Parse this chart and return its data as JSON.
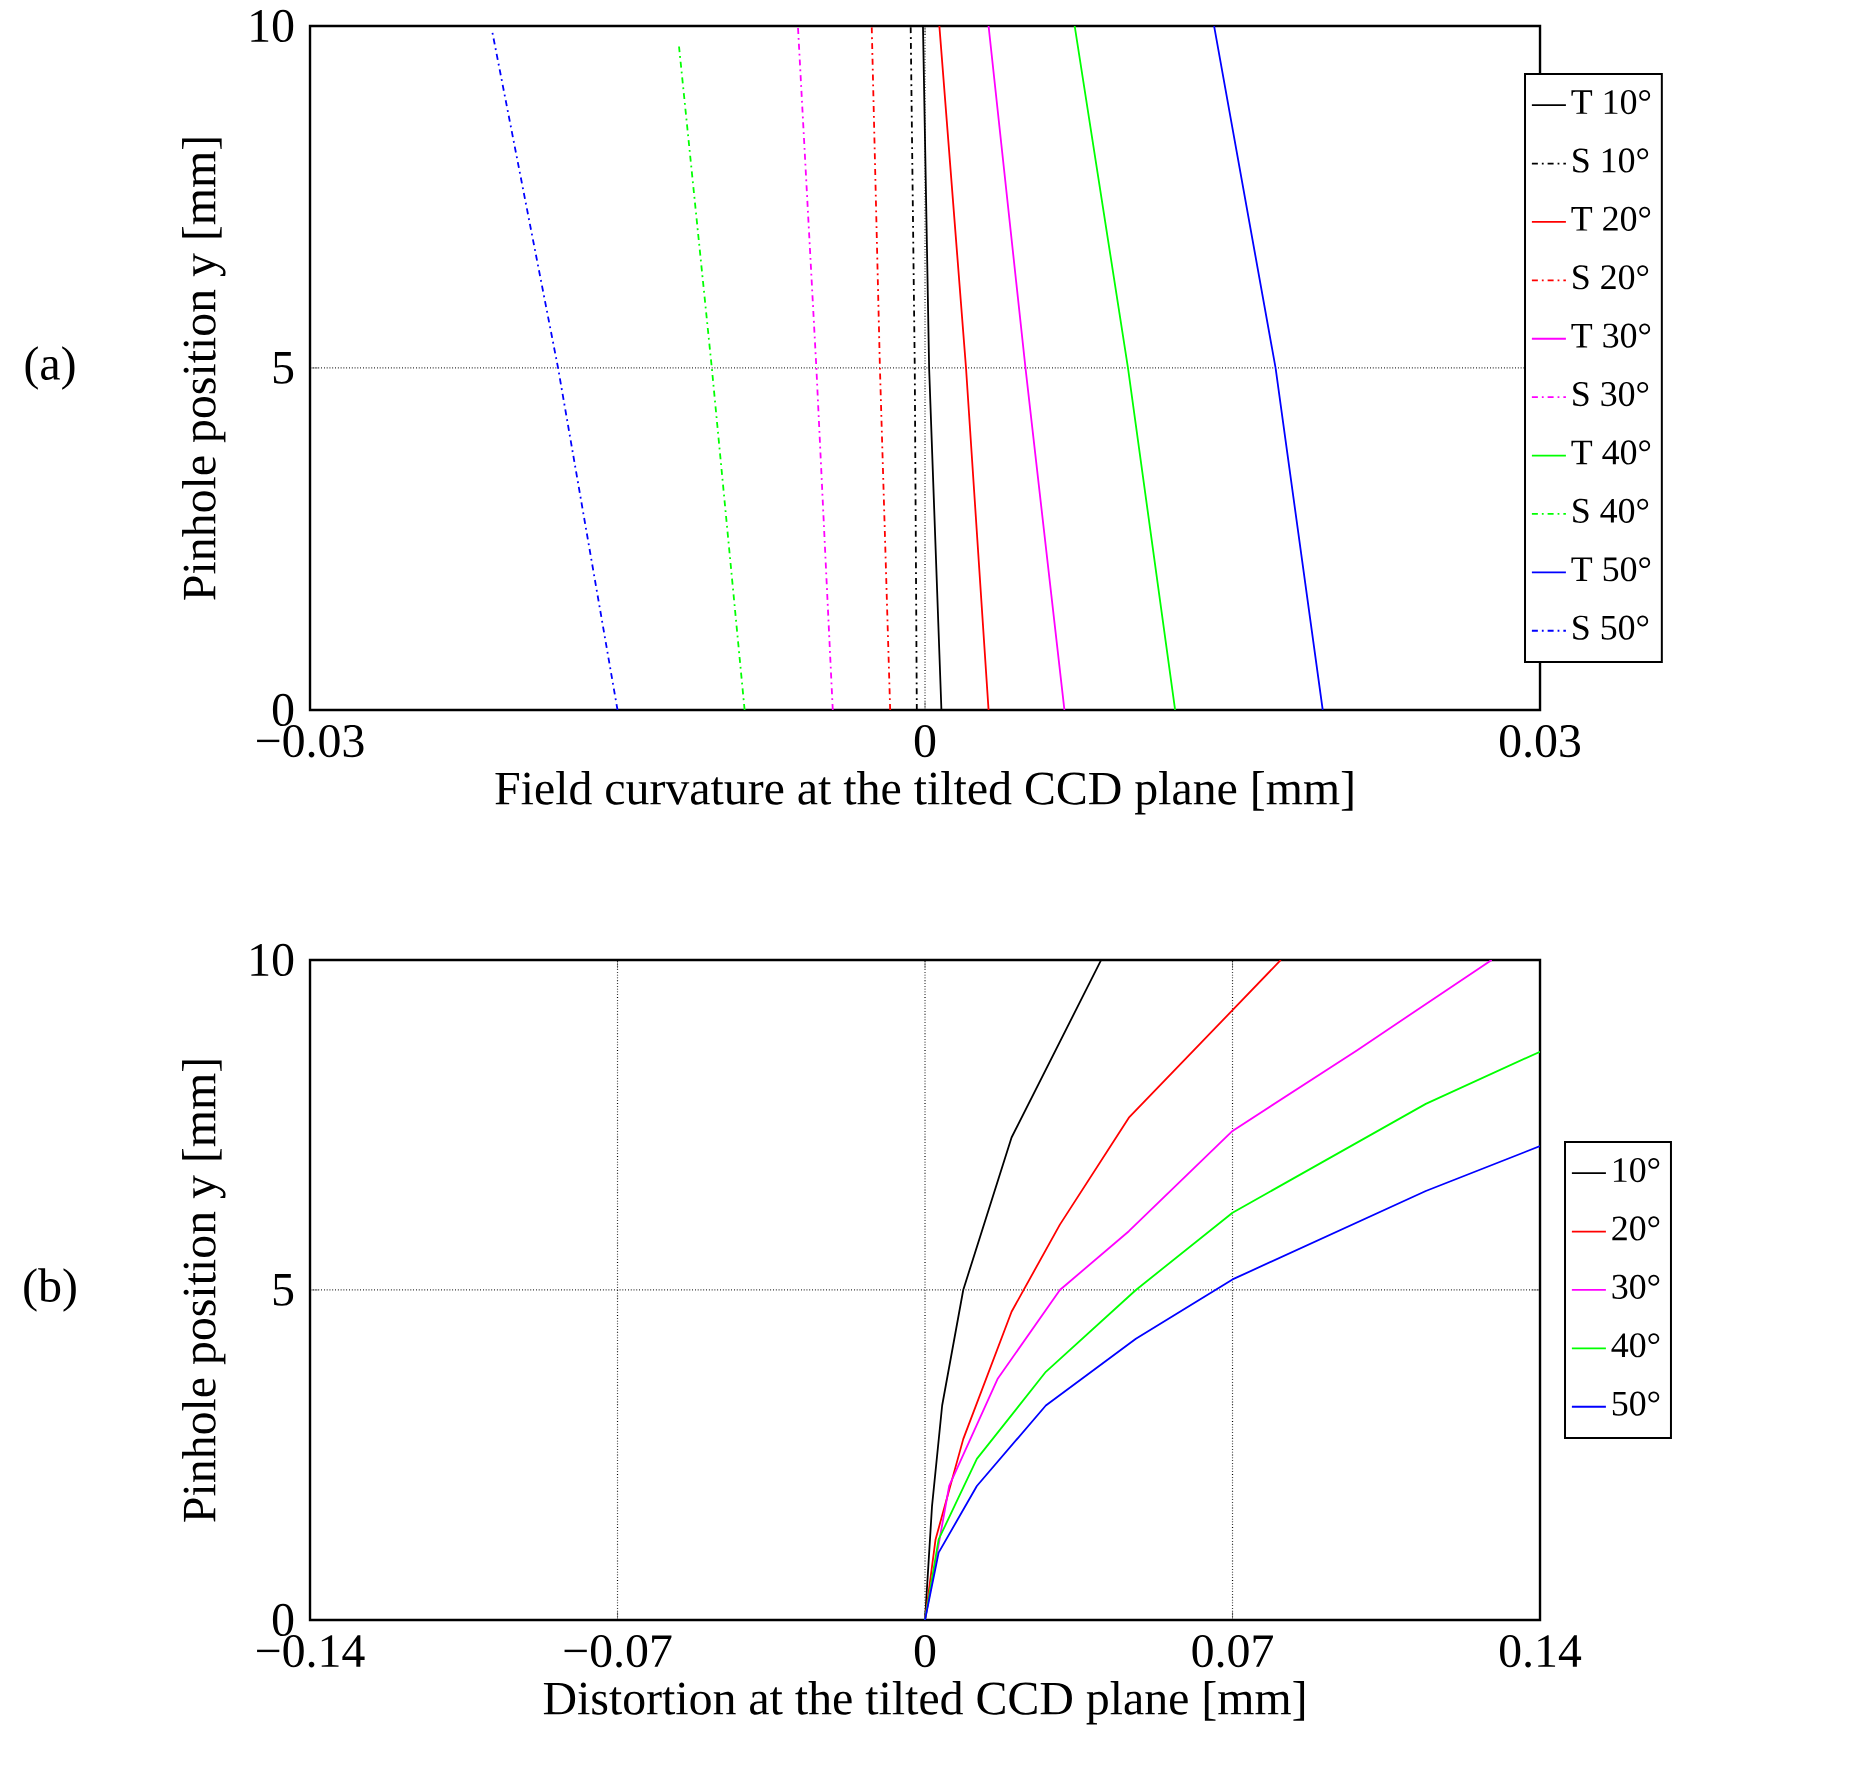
{
  "chart_data": [
    {
      "type": "line",
      "xlabel": "Field curvature at the tilted CCD plane [mm]",
      "ylabel": "Pinhole position y [mm]",
      "annotations": [
        "(a)"
      ],
      "xlim": [
        -0.03,
        0.03
      ],
      "ylim": [
        0,
        10
      ],
      "xticks": [
        {
          "value": -0.03,
          "label": "−0.03"
        },
        0,
        0.03
      ],
      "yticks": [
        0,
        5,
        10
      ],
      "grid": true,
      "legend": "right",
      "series": [
        {
          "name": "T 10°",
          "color": "#000000",
          "line_style": "solid",
          "x": [
            0.0008,
            0.0002,
            -0.0001
          ],
          "values": [
            0,
            5,
            10
          ]
        },
        {
          "name": "S 10°",
          "color": "#000000",
          "line_style": "dashdot",
          "x": [
            -0.0004,
            -0.0005,
            -0.0007
          ],
          "values": [
            0,
            5,
            10
          ]
        },
        {
          "name": "T 20°",
          "color": "#ff0000",
          "line_style": "solid",
          "x": [
            0.0031,
            0.002,
            0.0007
          ],
          "values": [
            0,
            5,
            10
          ]
        },
        {
          "name": "S 20°",
          "color": "#ff0000",
          "line_style": "dashdot",
          "x": [
            -0.0017,
            -0.0022,
            -0.0026
          ],
          "values": [
            0,
            5,
            10
          ]
        },
        {
          "name": "T 30°",
          "color": "#ff00ff",
          "line_style": "solid",
          "x": [
            0.0068,
            0.0049,
            0.0031
          ],
          "values": [
            0,
            5,
            10
          ]
        },
        {
          "name": "S 30°",
          "color": "#ff00ff",
          "line_style": "dashdot",
          "x": [
            -0.0045,
            -0.0053,
            -0.0062
          ],
          "values": [
            0,
            5,
            10
          ]
        },
        {
          "name": "T 40°",
          "color": "#00ff00",
          "line_style": "solid",
          "x": [
            0.0122,
            0.0099,
            0.0073
          ],
          "values": [
            0,
            5,
            10
          ]
        },
        {
          "name": "S 40°",
          "color": "#00ff00",
          "line_style": "dashdot",
          "x": [
            -0.0088,
            -0.0104,
            -0.012
          ],
          "values": [
            0,
            5,
            9.7
          ]
        },
        {
          "name": "T 50°",
          "color": "#0000ff",
          "line_style": "solid",
          "x": [
            0.0194,
            0.0171,
            0.0141
          ],
          "values": [
            0,
            5,
            10
          ]
        },
        {
          "name": "S 50°",
          "color": "#0000ff",
          "line_style": "dashdot",
          "x": [
            -0.015,
            -0.0179,
            -0.0211
          ],
          "values": [
            0,
            5,
            9.9
          ]
        }
      ]
    },
    {
      "type": "line",
      "xlabel": "Distortion at the tilted CCD plane [mm]",
      "ylabel": "Pinhole position y [mm]",
      "annotations": [
        "(b)"
      ],
      "xlim": [
        -0.14,
        0.14
      ],
      "ylim": [
        0,
        10
      ],
      "xticks": [
        {
          "value": -0.14,
          "label": "−0.14"
        },
        {
          "value": -0.07,
          "label": "−0.07"
        },
        0,
        0.07,
        0.14
      ],
      "yticks": [
        0,
        5,
        10
      ],
      "grid": true,
      "legend": "right",
      "series": [
        {
          "name": "10°",
          "color": "#000000",
          "x": [
            0,
            0.0016,
            0.0039,
            0.0087,
            0.0197,
            0.0401
          ],
          "values": [
            0,
            1.73,
            3.25,
            5.0,
            7.31,
            10
          ]
        },
        {
          "name": "20°",
          "color": "#ff0000",
          "x": [
            0,
            0.0024,
            0.0087,
            0.0197,
            0.0307,
            0.0464,
            0.07,
            0.081
          ],
          "values": [
            0,
            1.22,
            2.74,
            4.67,
            5.99,
            7.61,
            9.24,
            10
          ]
        },
        {
          "name": "30°",
          "color": "#ff00ff",
          "x": [
            0,
            0.0055,
            0.0165,
            0.0307,
            0.0464,
            0.07,
            0.0983,
            0.129
          ],
          "values": [
            0,
            2.03,
            3.65,
            5.0,
            5.89,
            7.41,
            8.63,
            10
          ]
        },
        {
          "name": "40°",
          "color": "#00ff00",
          "x": [
            0,
            0.0031,
            0.0118,
            0.0275,
            0.048,
            0.07,
            0.114,
            0.14
          ],
          "values": [
            0,
            1.22,
            2.44,
            3.76,
            5.0,
            6.17,
            7.82,
            8.61
          ]
        },
        {
          "name": "50°",
          "color": "#0000ff",
          "x": [
            0,
            0.0031,
            0.0118,
            0.0275,
            0.048,
            0.07,
            0.114,
            0.14
          ],
          "values": [
            0,
            1.02,
            2.03,
            3.25,
            4.26,
            5.16,
            6.5,
            7.18
          ]
        }
      ]
    }
  ]
}
